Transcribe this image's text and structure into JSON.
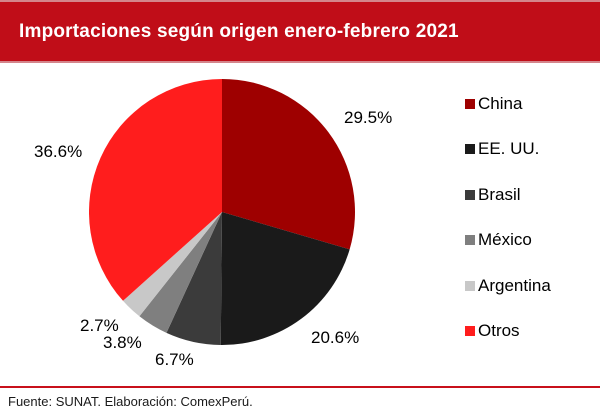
{
  "header": {
    "title": "Importaciones según origen enero-febrero 2021"
  },
  "footer": {
    "source": "Fuente: SUNAT. Elaboración: ComexPerú."
  },
  "colors": {
    "banner_background": "#C00D18",
    "banner_border": "#D4858B",
    "footer_rule": "#C8101B",
    "title_text": "#FFFFFF",
    "label_text": "#000000"
  },
  "chart_data": {
    "type": "pie",
    "title": "Importaciones según origen enero-febrero 2021",
    "start_angle_deg": 0,
    "direction": "clockwise",
    "legend_position": "right",
    "slices": [
      {
        "name": "China",
        "value": 29.5,
        "label": "29.5%",
        "color": "#9E0000"
      },
      {
        "name": "EE. UU.",
        "value": 20.6,
        "label": "20.6%",
        "color": "#1A1A1A"
      },
      {
        "name": "Brasil",
        "value": 6.7,
        "label": "6.7%",
        "color": "#3B3B3B"
      },
      {
        "name": "México",
        "value": 3.8,
        "label": "3.8%",
        "color": "#7F7F7F"
      },
      {
        "name": "Argentina",
        "value": 2.7,
        "label": "2.7%",
        "color": "#C8C8C8"
      },
      {
        "name": "Otros",
        "value": 36.6,
        "label": "36.6%",
        "color": "#FF1D1D"
      }
    ]
  }
}
